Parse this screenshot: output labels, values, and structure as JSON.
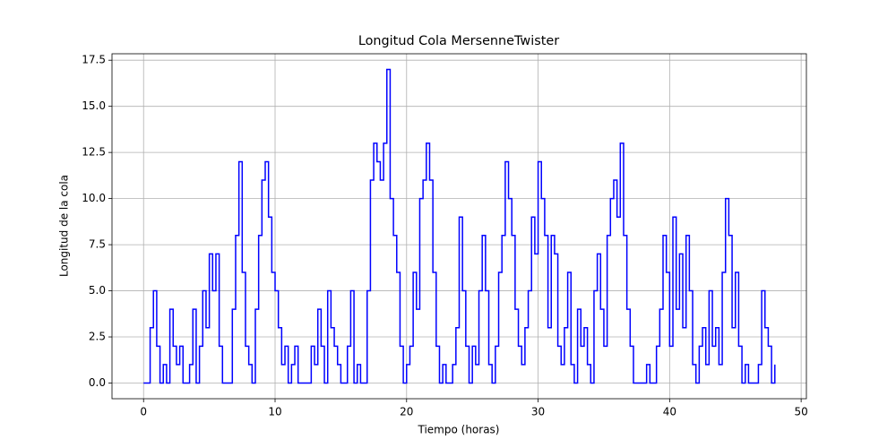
{
  "chart_data": {
    "type": "line",
    "title": "Longitud Cola MersenneTwister",
    "x_label": "Tiempo (horas)",
    "y_label": "Longitud de la cola",
    "x": [
      0,
      0.25,
      0.5,
      0.75,
      1,
      1.25,
      1.5,
      1.75,
      2,
      2.25,
      2.5,
      2.75,
      3,
      3.25,
      3.5,
      3.75,
      4,
      4.25,
      4.5,
      4.75,
      5,
      5.25,
      5.5,
      5.75,
      6,
      6.25,
      6.5,
      6.75,
      7,
      7.25,
      7.5,
      7.75,
      8,
      8.25,
      8.5,
      8.75,
      9,
      9.25,
      9.5,
      9.75,
      10,
      10.25,
      10.5,
      10.75,
      11,
      11.25,
      11.5,
      11.75,
      12,
      12.25,
      12.5,
      12.75,
      13,
      13.25,
      13.5,
      13.75,
      14,
      14.25,
      14.5,
      14.75,
      15,
      15.25,
      15.5,
      15.75,
      16,
      16.25,
      16.5,
      16.75,
      17,
      17.25,
      17.5,
      17.75,
      18,
      18.25,
      18.5,
      18.75,
      19,
      19.25,
      19.5,
      19.75,
      20,
      20.25,
      20.5,
      20.75,
      21,
      21.25,
      21.5,
      21.75,
      22,
      22.25,
      22.5,
      22.75,
      23,
      23.25,
      23.5,
      23.75,
      24,
      24.25,
      24.5,
      24.75,
      25,
      25.25,
      25.5,
      25.75,
      26,
      26.25,
      26.5,
      26.75,
      27,
      27.25,
      27.5,
      27.75,
      28,
      28.25,
      28.5,
      28.75,
      29,
      29.25,
      29.5,
      29.75,
      30,
      30.25,
      30.5,
      30.75,
      31,
      31.25,
      31.5,
      31.75,
      32,
      32.25,
      32.5,
      32.75,
      33,
      33.25,
      33.5,
      33.75,
      34,
      34.25,
      34.5,
      34.75,
      35,
      35.25,
      35.5,
      35.75,
      36,
      36.25,
      36.5,
      36.75,
      37,
      37.25,
      37.5,
      37.75,
      38,
      38.25,
      38.5,
      38.75,
      39,
      39.25,
      39.5,
      39.75,
      40,
      40.25,
      40.5,
      40.75,
      41,
      41.25,
      41.5,
      41.75,
      42,
      42.25,
      42.5,
      42.75,
      43,
      43.25,
      43.5,
      43.75,
      44,
      44.25,
      44.5,
      44.75,
      45,
      45.25,
      45.5,
      45.75,
      46,
      46.25,
      46.5,
      46.75,
      47,
      47.25,
      47.5,
      47.75,
      48
    ],
    "series": [
      {
        "color": "#0000ff",
        "values": [
          0,
          0,
          3,
          5,
          2,
          0,
          1,
          0,
          4,
          2,
          1,
          2,
          0,
          0,
          1,
          4,
          0,
          2,
          5,
          3,
          7,
          5,
          7,
          2,
          0,
          0,
          0,
          4,
          8,
          12,
          6,
          2,
          1,
          0,
          4,
          8,
          11,
          12,
          9,
          6,
          5,
          3,
          1,
          2,
          0,
          1,
          2,
          0,
          0,
          0,
          0,
          2,
          1,
          4,
          2,
          0,
          5,
          3,
          2,
          1,
          0,
          0,
          2,
          5,
          0,
          1,
          0,
          0,
          5,
          11,
          13,
          12,
          11,
          13,
          17,
          10,
          8,
          6,
          2,
          0,
          1,
          2,
          6,
          4,
          10,
          11,
          13,
          11,
          6,
          2,
          0,
          1,
          0,
          0,
          1,
          3,
          9,
          5,
          2,
          0,
          2,
          1,
          5,
          8,
          5,
          1,
          0,
          2,
          6,
          8,
          12,
          10,
          8,
          4,
          2,
          1,
          3,
          5,
          9,
          7,
          12,
          10,
          8,
          3,
          8,
          7,
          2,
          1,
          3,
          6,
          1,
          0,
          4,
          2,
          3,
          1,
          0,
          5,
          7,
          4,
          2,
          8,
          10,
          11,
          9,
          13,
          8,
          4,
          2,
          0,
          0,
          0,
          0,
          1,
          0,
          0,
          2,
          4,
          8,
          6,
          2,
          9,
          4,
          7,
          3,
          8,
          5,
          1,
          0,
          2,
          3,
          1,
          5,
          2,
          3,
          1,
          6,
          10,
          8,
          3,
          6,
          2,
          0,
          1,
          0,
          0,
          0,
          1,
          5,
          3,
          2,
          0,
          1
        ]
      }
    ],
    "xlim": [
      -2.4,
      50.4
    ],
    "ylim": [
      -0.85,
      17.85
    ],
    "xticks": [
      0,
      10,
      20,
      30,
      40,
      50
    ],
    "yticks": [
      {
        "value": 0,
        "label": "0.0"
      },
      {
        "value": 2.5,
        "label": "2.5"
      },
      {
        "value": 5,
        "label": "5.0"
      },
      {
        "value": 7.5,
        "label": "7.5"
      },
      {
        "value": 10,
        "label": "10.0"
      },
      {
        "value": 12.5,
        "label": "12.5"
      },
      {
        "value": 15,
        "label": "15.0"
      },
      {
        "value": 17.5,
        "label": "17.5"
      }
    ],
    "grid": true
  }
}
